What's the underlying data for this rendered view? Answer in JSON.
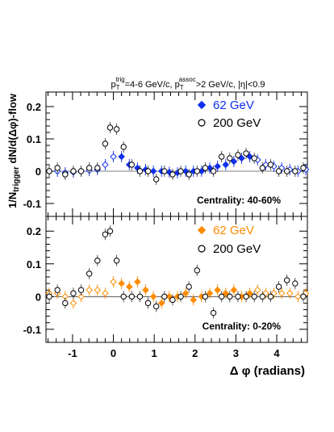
{
  "figure": {
    "title_main": "p",
    "title_sub_trig": "T",
    "title_sup_trig": "trig",
    "title_mid": "=4-6 GeV/c, p",
    "title_sub_assoc": "T",
    "title_sup_assoc": "assoc",
    "title_end": ">2 GeV/c, |η|<0.9",
    "ylabel_pre": "1/N",
    "ylabel_sub": "trigger",
    "ylabel_post": " dN/d(Δφ)-flow",
    "xlabel": "Δ φ (radians)"
  },
  "chart_data": [
    {
      "type": "scatter",
      "panel": "top",
      "annotation": "Centrality: 40-60%",
      "xlim": [
        -1.65,
        4.75
      ],
      "ylim": [
        -0.14,
        0.245
      ],
      "yticks": [
        -0.1,
        0,
        0.1,
        0.2
      ],
      "ytick_labels": [
        "-0.1",
        "0",
        "0.1",
        "0.2"
      ],
      "xticks": [
        -1,
        0,
        1,
        2,
        3,
        4
      ],
      "xtick_labels": [
        "-1",
        "0",
        "1",
        "2",
        "3",
        "4"
      ],
      "legend_position": "top-right",
      "series": [
        {
          "name": "62 GeV",
          "color": "#1030ee",
          "marker": "diamond",
          "x": [
            -1.57,
            -1.37,
            -1.18,
            -0.98,
            -0.79,
            -0.59,
            -0.39,
            -0.2,
            0.0,
            0.2,
            0.39,
            0.59,
            0.79,
            0.98,
            1.18,
            1.37,
            1.57,
            1.77,
            1.96,
            2.16,
            2.36,
            2.55,
            2.75,
            2.95,
            3.14,
            3.34,
            3.53,
            3.73,
            3.93,
            4.12,
            4.32,
            4.52,
            4.71
          ],
          "y": [
            0.0,
            0.0,
            -0.005,
            -0.003,
            0.0,
            0.002,
            0.005,
            0.02,
            0.045,
            0.045,
            0.02,
            0.01,
            0.005,
            0.0,
            0.0,
            -0.003,
            -0.005,
            0.0,
            0.0,
            0.0,
            0.01,
            0.015,
            0.02,
            0.03,
            0.04,
            0.045,
            0.035,
            0.02,
            0.015,
            0.01,
            0.005,
            0.0,
            0.005
          ],
          "filled": [
            false,
            false,
            false,
            false,
            false,
            false,
            false,
            false,
            false,
            true,
            true,
            true,
            true,
            true,
            true,
            true,
            true,
            true,
            true,
            true,
            true,
            true,
            true,
            true,
            true,
            true,
            false,
            false,
            false,
            false,
            false,
            false,
            false
          ]
        },
        {
          "name": "200 GeV",
          "color": "#000000",
          "marker": "circle",
          "x": [
            -1.57,
            -1.37,
            -1.18,
            -0.98,
            -0.79,
            -0.59,
            -0.39,
            -0.2,
            -0.08,
            0.08,
            0.25,
            0.45,
            0.65,
            0.85,
            1.05,
            1.25,
            1.45,
            1.65,
            1.85,
            2.05,
            2.25,
            2.45,
            2.65,
            2.85,
            3.05,
            3.25,
            3.45,
            3.65,
            3.85,
            4.05,
            4.25,
            4.45,
            4.65
          ],
          "y": [
            0.0,
            0.01,
            -0.01,
            0.0,
            0.0,
            0.01,
            0.01,
            0.085,
            0.135,
            0.13,
            0.075,
            0.02,
            0.0,
            0.0,
            -0.025,
            0.0,
            -0.01,
            0.0,
            -0.01,
            0.0,
            0.01,
            0.0,
            0.045,
            0.04,
            0.05,
            0.055,
            0.04,
            0.01,
            0.02,
            0.0,
            0.0,
            0.0,
            0.01
          ]
        }
      ]
    },
    {
      "type": "scatter",
      "panel": "bottom",
      "annotation": "Centrality:  0-20%",
      "xlim": [
        -1.65,
        4.75
      ],
      "ylim": [
        -0.14,
        0.245
      ],
      "yticks": [
        -0.1,
        0,
        0.1,
        0.2
      ],
      "ytick_labels": [
        "-0.1",
        "0",
        "0.1",
        "0.2"
      ],
      "xticks": [
        -1,
        0,
        1,
        2,
        3,
        4
      ],
      "xtick_labels": [
        "-1",
        "0",
        "1",
        "2",
        "3",
        "4"
      ],
      "legend_position": "top-right",
      "series": [
        {
          "name": "62 GeV",
          "color": "#ff8c00",
          "marker": "diamond",
          "x": [
            -1.57,
            -1.37,
            -1.18,
            -0.98,
            -0.79,
            -0.59,
            -0.39,
            -0.2,
            0.0,
            0.2,
            0.39,
            0.59,
            0.79,
            0.98,
            1.18,
            1.37,
            1.57,
            1.77,
            1.96,
            2.16,
            2.36,
            2.55,
            2.75,
            2.95,
            3.14,
            3.34,
            3.53,
            3.73,
            3.93,
            4.12,
            4.32,
            4.52,
            4.71
          ],
          "y": [
            0.01,
            0.01,
            0.0,
            -0.02,
            0.0,
            0.02,
            0.02,
            0.01,
            0.045,
            0.04,
            0.03,
            0.045,
            0.02,
            0.0,
            -0.02,
            0.0,
            0.0,
            0.01,
            -0.01,
            0.0,
            0.01,
            0.02,
            0.01,
            0.02,
            0.0,
            0.01,
            0.02,
            0.01,
            0.01,
            0.01,
            0.01,
            0.0,
            0.01
          ],
          "filled": [
            false,
            false,
            false,
            false,
            false,
            false,
            false,
            false,
            false,
            true,
            true,
            true,
            true,
            true,
            true,
            true,
            true,
            true,
            true,
            true,
            true,
            true,
            true,
            true,
            true,
            true,
            false,
            false,
            false,
            false,
            false,
            false,
            false
          ]
        },
        {
          "name": "200 GeV",
          "color": "#000000",
          "marker": "circle",
          "x": [
            -1.57,
            -1.37,
            -1.18,
            -0.98,
            -0.79,
            -0.59,
            -0.39,
            -0.2,
            -0.08,
            0.08,
            0.25,
            0.45,
            0.65,
            0.85,
            1.05,
            1.25,
            1.45,
            1.65,
            1.85,
            2.05,
            2.25,
            2.45,
            2.65,
            2.85,
            3.05,
            3.25,
            3.45,
            3.65,
            3.85,
            4.05,
            4.25,
            4.45,
            4.65
          ],
          "y": [
            0.0,
            0.02,
            -0.02,
            0.01,
            0.02,
            0.07,
            0.11,
            0.19,
            0.2,
            0.11,
            0.0,
            0.0,
            0.0,
            -0.02,
            -0.03,
            0.0,
            -0.01,
            0.0,
            0.03,
            0.08,
            0.0,
            -0.05,
            0.0,
            0.0,
            0.0,
            0.0,
            0.0,
            0.0,
            0.0,
            0.03,
            0.05,
            0.04,
            0.0
          ]
        }
      ]
    }
  ]
}
